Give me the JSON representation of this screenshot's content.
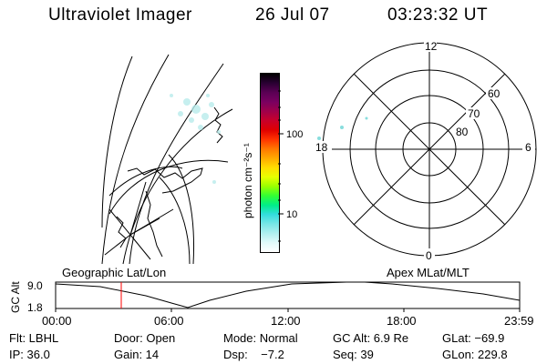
{
  "header": {
    "title": "Ultraviolet Imager",
    "date": "26 Jul 07",
    "time": "03:23:32 UT"
  },
  "colorbar": {
    "unit": "photon cm⁻²s⁻¹",
    "ticks": [
      "100",
      "10"
    ],
    "colors": [
      "#000000",
      "#2a0033",
      "#5a0054",
      "#7a0060",
      "#a0004a",
      "#c8002a",
      "#e00000",
      "#ff3300",
      "#ff7700",
      "#ffaa00",
      "#ffdd00",
      "#e8ff00",
      "#99ff00",
      "#33ff33",
      "#00ee88",
      "#33dddd",
      "#77e6e6",
      "#b0f0f0",
      "#e0fafa",
      "#ffffff"
    ]
  },
  "polar": {
    "lat_labels": [
      "80",
      "70",
      "60"
    ],
    "mlt_labels": {
      "top": "12",
      "right": "6",
      "bottom": "0",
      "left": "18"
    }
  },
  "timeline": {
    "left_label": "Geographic Lat/Lon",
    "right_label": "Apex MLat/MLT",
    "y_axis_title": "GC Alt",
    "y_ticks": [
      "9.0",
      "1.8"
    ],
    "x_ticks": [
      "00:00",
      "06:00",
      "12:00",
      "18:00",
      "23:59"
    ],
    "current_marker_time": "03:23",
    "marker_color": "#ff0000"
  },
  "footer": {
    "row1": [
      "Flt: LBHL",
      "Door: Open",
      "Mode: Normal",
      "GC Alt: 6.9 Re",
      "GLat: −69.9"
    ],
    "row2": [
      "IP: 36.0",
      "Gain: 14",
      "Dsp:    −7.2",
      "Seq: 39",
      "GLon: 229.8"
    ]
  }
}
